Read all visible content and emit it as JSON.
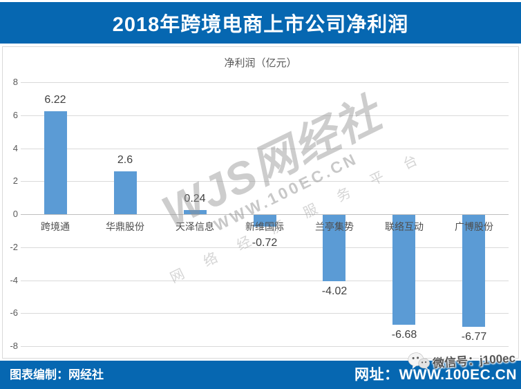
{
  "header": {
    "title": "2018年跨境电商上市公司净利润"
  },
  "chart_data": {
    "type": "bar",
    "title": "净利润（亿元）",
    "categories": [
      "跨境通",
      "华鼎股份",
      "天泽信息",
      "新维国际",
      "兰亭集势",
      "联络互动",
      "广博股份"
    ],
    "values": [
      6.22,
      2.6,
      0.24,
      -0.72,
      -4.02,
      -6.68,
      -6.77
    ],
    "value_labels": [
      "6.22",
      "2.6",
      "0.24",
      "-0.72",
      "-4.02",
      "-6.68",
      "-6.77"
    ],
    "ylim": [
      -8,
      8
    ],
    "yticks": [
      8,
      6,
      4,
      2,
      0,
      -2,
      -4,
      -6,
      -8
    ],
    "grid": true,
    "legend": "none",
    "bar_color": "#5B9BD5"
  },
  "watermark": {
    "main": "WJS网经社",
    "url": "WWW.100EC.CN",
    "slogan": "网 络 经 济 服 务 平 台"
  },
  "footer": {
    "left": "图表编制：网经社",
    "right": "网址：WWW.100EC.CN",
    "wechat": "微信号：j100ec"
  },
  "colors": {
    "brand_blue": "#0667B1",
    "bar_blue": "#5B9BD5",
    "gridline": "#D9D9D9"
  }
}
